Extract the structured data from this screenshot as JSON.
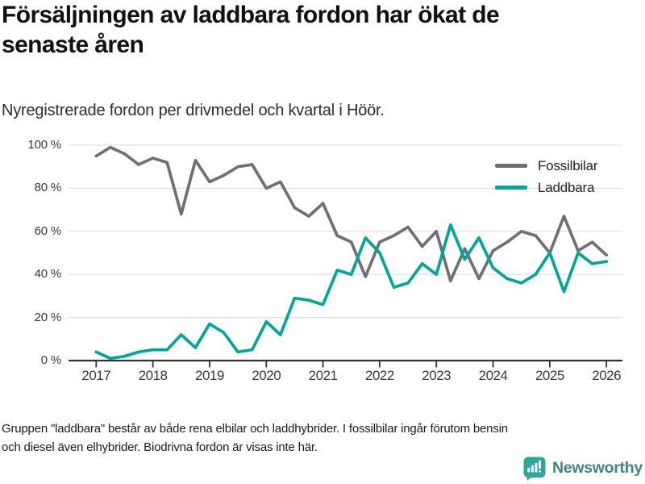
{
  "title": {
    "lines": [
      "Försäljningen av laddbara fordon har ökat de",
      "senaste åren"
    ]
  },
  "subtitle": "Nyregistrerade fordon per drivmedel och kvartal i Höör.",
  "chart_data": {
    "type": "line",
    "title": "Försäljningen av laddbara fordon har ökat de senaste åren",
    "subtitle": "Nyregistrerade fordon per drivmedel och kvartal i Höör.",
    "x_unit": "quarter",
    "x": [
      "2017 Q1",
      "2017 Q2",
      "2017 Q3",
      "2017 Q4",
      "2018 Q1",
      "2018 Q2",
      "2018 Q3",
      "2018 Q4",
      "2019 Q1",
      "2019 Q2",
      "2019 Q3",
      "2019 Q4",
      "2020 Q1",
      "2020 Q2",
      "2020 Q3",
      "2020 Q4",
      "2021 Q1",
      "2021 Q2",
      "2021 Q3",
      "2021 Q4",
      "2022 Q1",
      "2022 Q2",
      "2022 Q3",
      "2022 Q4",
      "2023 Q1",
      "2023 Q2",
      "2023 Q3",
      "2023 Q4",
      "2024 Q1",
      "2024 Q2",
      "2024 Q3",
      "2024 Q4",
      "2025 Q1",
      "2025 Q2",
      "2025 Q3",
      "2025 Q4",
      "2026 Q1"
    ],
    "series": [
      {
        "id": "fossilbilar",
        "name": "Fossilbilar",
        "color": "#6f6f76",
        "unit": "%",
        "values": [
          95,
          99,
          96,
          91,
          94,
          92,
          68,
          93,
          83,
          86,
          90,
          91,
          80,
          83,
          71,
          67,
          73,
          58,
          55,
          39,
          55,
          58,
          62,
          53,
          60,
          37,
          52,
          38,
          51,
          55,
          60,
          58,
          50,
          67,
          51,
          55,
          49
        ]
      },
      {
        "id": "laddbara",
        "name": "Laddbara",
        "color": "#00a59b",
        "unit": "%",
        "values": [
          4,
          1,
          2,
          4,
          5,
          5,
          12,
          6,
          17,
          13,
          4,
          5,
          18,
          12,
          29,
          28,
          26,
          42,
          40,
          57,
          50,
          34,
          36,
          45,
          40,
          63,
          47,
          57,
          43,
          38,
          36,
          40,
          50,
          32,
          50,
          45,
          46
        ]
      }
    ],
    "ylim": [
      0,
      100
    ],
    "yticks": [
      {
        "value": 0,
        "label": "0 %"
      },
      {
        "value": 20,
        "label": "20 %"
      },
      {
        "value": 40,
        "label": "40 %"
      },
      {
        "value": 60,
        "label": "60 %"
      },
      {
        "value": 80,
        "label": "80 %"
      },
      {
        "value": 100,
        "label": "100 %"
      }
    ],
    "xticks": [
      "2017",
      "2018",
      "2019",
      "2020",
      "2021",
      "2022",
      "2023",
      "2024",
      "2025",
      "2026"
    ],
    "grid": "horizontal",
    "legend_position": "top-right",
    "colors": {
      "grid": "#e1e1e4",
      "axis": "#333333",
      "tick_label": "#3a3a3a"
    }
  },
  "footer": {
    "lines": [
      "Gruppen \"laddbara\" består av både rena elbilar och laddhybrider. I fossilbilar ingår förutom bensin",
      "och diesel även elhybrider. Biodrivna fordon är visas inte här."
    ]
  },
  "brand": {
    "name": "Newsworthy",
    "icon_color": "#2ea69b",
    "text_color": "#3e8681"
  }
}
